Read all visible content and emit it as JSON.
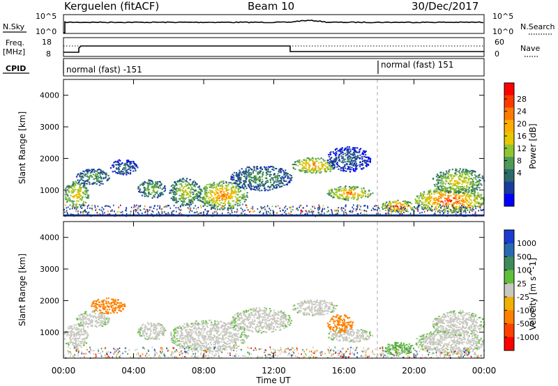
{
  "header": {
    "title": "Kerguelen (fitACF)",
    "beam": "Beam 10",
    "date": "30/Dec/2017"
  },
  "panels": {
    "nsky": {
      "label": "N.Sky",
      "ticks_left": [
        "10^5",
        "10^0"
      ],
      "ticks_right": [
        "10^5",
        "10^0"
      ],
      "right_label": "N.Search"
    },
    "freq": {
      "label_line1": "Freq.",
      "label_line2": "[MHz]",
      "ticks_left": [
        "18",
        "8"
      ],
      "ticks_right": [
        "60",
        "0"
      ],
      "right_label": "Nave"
    },
    "cpid": {
      "label": "CPID",
      "mode1": "normal (fast) -151",
      "mode2": "normal (fast) 151",
      "switch_hour": 18.0
    }
  },
  "colorbars": {
    "power": {
      "label": "Power [dB]",
      "ticks": [
        "28",
        "24",
        "20",
        "16",
        "12",
        "8",
        "4"
      ],
      "colors": [
        "#ff0000",
        "#ff3a00",
        "#ff7a00",
        "#ffae00",
        "#e6c800",
        "#8fc630",
        "#4f9a55",
        "#2b6a6b",
        "#1a3c9e",
        "#0000ff"
      ]
    },
    "velocity": {
      "label": "Velocity [m s^-1]",
      "ticks": [
        "1000",
        "500",
        "100",
        "25",
        "-25",
        "-100",
        "-500",
        "-1000"
      ],
      "colors": [
        "#1a3cd0",
        "#2a6ab0",
        "#3f8a5a",
        "#5fbf3a",
        "#c8c8c0",
        "#f0b000",
        "#ff8000",
        "#ff4000",
        "#ff0000"
      ]
    }
  },
  "chart_data": [
    {
      "type": "heatmap",
      "title": "Power",
      "ylabel": "Slant Range [km]",
      "xlabel": "Time UT",
      "xlim": [
        0,
        24
      ],
      "ylim": [
        180,
        4500
      ],
      "y_ticks": [
        1000,
        2000,
        3000,
        4000
      ],
      "x_tick_labels": [
        "00:00",
        "04:00",
        "08:00",
        "12:00",
        "16:00",
        "20:00",
        "00:00"
      ],
      "blobs": [
        {
          "t0": 0.0,
          "t1": 1.4,
          "r0": 450,
          "r1": 1300,
          "p": 22
        },
        {
          "t0": 0.7,
          "t1": 2.6,
          "r0": 1150,
          "r1": 1700,
          "p": 14
        },
        {
          "t0": 2.6,
          "t1": 4.2,
          "r0": 1500,
          "r1": 2000,
          "p": 10
        },
        {
          "t0": 4.2,
          "t1": 5.8,
          "r0": 750,
          "r1": 1350,
          "p": 16
        },
        {
          "t0": 6.0,
          "t1": 7.8,
          "r0": 500,
          "r1": 1400,
          "p": 18
        },
        {
          "t0": 7.6,
          "t1": 10.5,
          "r0": 400,
          "r1": 1300,
          "p": 24
        },
        {
          "t0": 9.5,
          "t1": 13.0,
          "r0": 1000,
          "r1": 1800,
          "p": 13
        },
        {
          "t0": 13.0,
          "t1": 15.6,
          "r0": 1550,
          "r1": 2050,
          "p": 25
        },
        {
          "t0": 15.0,
          "t1": 17.6,
          "r0": 700,
          "r1": 1150,
          "p": 25
        },
        {
          "t0": 15.0,
          "t1": 17.5,
          "r0": 1600,
          "r1": 2400,
          "p": 9
        },
        {
          "t0": 18.1,
          "t1": 20.0,
          "r0": 300,
          "r1": 700,
          "p": 27
        },
        {
          "t0": 20.0,
          "t1": 24.0,
          "r0": 300,
          "r1": 1100,
          "p": 28
        },
        {
          "t0": 21.0,
          "t1": 24.0,
          "r0": 900,
          "r1": 1700,
          "p": 20
        }
      ]
    },
    {
      "type": "heatmap",
      "title": "Velocity",
      "ylabel": "Slant Range [km]",
      "xlabel": "Time UT",
      "xlim": [
        0,
        24
      ],
      "ylim": [
        180,
        4500
      ],
      "y_ticks": [
        1000,
        2000,
        3000,
        4000
      ],
      "x_tick_labels": [
        "00:00",
        "04:00",
        "08:00",
        "12:00",
        "16:00",
        "20:00",
        "00:00"
      ],
      "blobs": [
        {
          "t0": 0.0,
          "t1": 1.4,
          "r0": 450,
          "r1": 1300,
          "v": 0
        },
        {
          "t0": 0.7,
          "t1": 2.6,
          "r0": 1150,
          "r1": 1700,
          "v": 0
        },
        {
          "t0": 1.5,
          "t1": 3.5,
          "r0": 1600,
          "r1": 2100,
          "v": -200
        },
        {
          "t0": 4.2,
          "t1": 5.8,
          "r0": 750,
          "r1": 1350,
          "v": 0
        },
        {
          "t0": 6.0,
          "t1": 10.5,
          "r0": 400,
          "r1": 1400,
          "v": 0
        },
        {
          "t0": 9.5,
          "t1": 13.0,
          "r0": 1000,
          "r1": 1800,
          "v": 0
        },
        {
          "t0": 13.0,
          "t1": 15.6,
          "r0": 1550,
          "r1": 2050,
          "v": 0
        },
        {
          "t0": 15.0,
          "t1": 17.6,
          "r0": 700,
          "r1": 1150,
          "v": 0
        },
        {
          "t0": 15.0,
          "t1": 16.5,
          "r0": 1000,
          "r1": 1600,
          "v": -300
        },
        {
          "t0": 18.1,
          "t1": 20.0,
          "r0": 300,
          "r1": 700,
          "v": 50
        },
        {
          "t0": 20.0,
          "t1": 24.0,
          "r0": 300,
          "r1": 1100,
          "v": 0
        },
        {
          "t0": 21.0,
          "t1": 24.0,
          "r0": 900,
          "r1": 1700,
          "v": 0
        }
      ]
    }
  ]
}
